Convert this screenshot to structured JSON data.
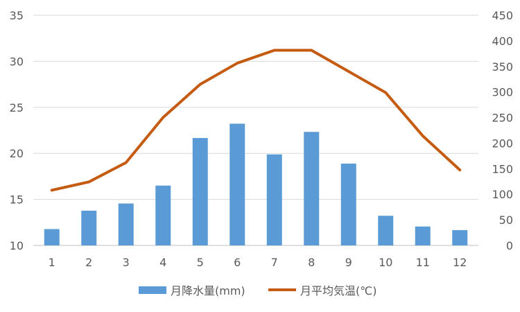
{
  "chart_data": {
    "type": "bar",
    "categories": [
      "1",
      "2",
      "3",
      "4",
      "5",
      "6",
      "7",
      "8",
      "9",
      "10",
      "11",
      "12"
    ],
    "series": [
      {
        "name": "月降水量(mm)",
        "type": "bar",
        "axis": "right",
        "color": "#5B9BD5",
        "values": [
          32,
          68,
          82,
          117,
          210,
          238,
          178,
          222,
          160,
          58,
          37,
          30
        ]
      },
      {
        "name": "月平均気温(℃)",
        "type": "line",
        "axis": "left",
        "color": "#C55A11",
        "values": [
          16.0,
          16.9,
          19.0,
          23.9,
          27.5,
          29.8,
          31.2,
          31.2,
          28.9,
          26.6,
          21.9,
          18.2
        ]
      }
    ],
    "y_left": {
      "min": 10,
      "max": 35,
      "ticks": [
        "10",
        "15",
        "20",
        "25",
        "30",
        "35"
      ]
    },
    "y_right": {
      "min": 0,
      "max": 450,
      "ticks": [
        "0",
        "50",
        "100",
        "150",
        "200",
        "250",
        "300",
        "350",
        "400",
        "450"
      ]
    },
    "grid": true,
    "legend_position": "bottom"
  }
}
